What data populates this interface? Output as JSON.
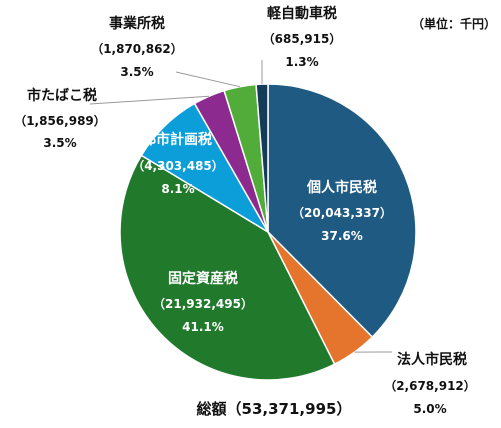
{
  "chart_data": {
    "type": "pie",
    "unit_note": "（単位：千円）",
    "total_label": "総額（53,371,995）",
    "slices": [
      {
        "name": "個人市民税",
        "value": 20043337,
        "value_label": "（20,043,337）",
        "percent_label": "37.6%",
        "color": "#1e5a82"
      },
      {
        "name": "法人市民税",
        "value": 2678912,
        "value_label": "（2,678,912）",
        "percent_label": "5.0%",
        "color": "#e5742d"
      },
      {
        "name": "固定資産税",
        "value": 21932495,
        "value_label": "（21,932,495）",
        "percent_label": "41.1%",
        "color": "#217a2c"
      },
      {
        "name": "都市計画税",
        "value": 4303485,
        "value_label": "（4,303,485）",
        "percent_label": "8.1%",
        "color": "#0b9ed8"
      },
      {
        "name": "市たばこ税",
        "value": 1856989,
        "value_label": "（1,856,989）",
        "percent_label": "3.5%",
        "color": "#8d2a8f"
      },
      {
        "name": "事業所税",
        "value": 1870862,
        "value_label": "（1,870,862）",
        "percent_label": "3.5%",
        "color": "#52ac3a"
      },
      {
        "name": "軽自動車税",
        "value": 685915,
        "value_label": "（685,915）",
        "percent_label": "1.3%",
        "color": "#143c58"
      }
    ]
  }
}
